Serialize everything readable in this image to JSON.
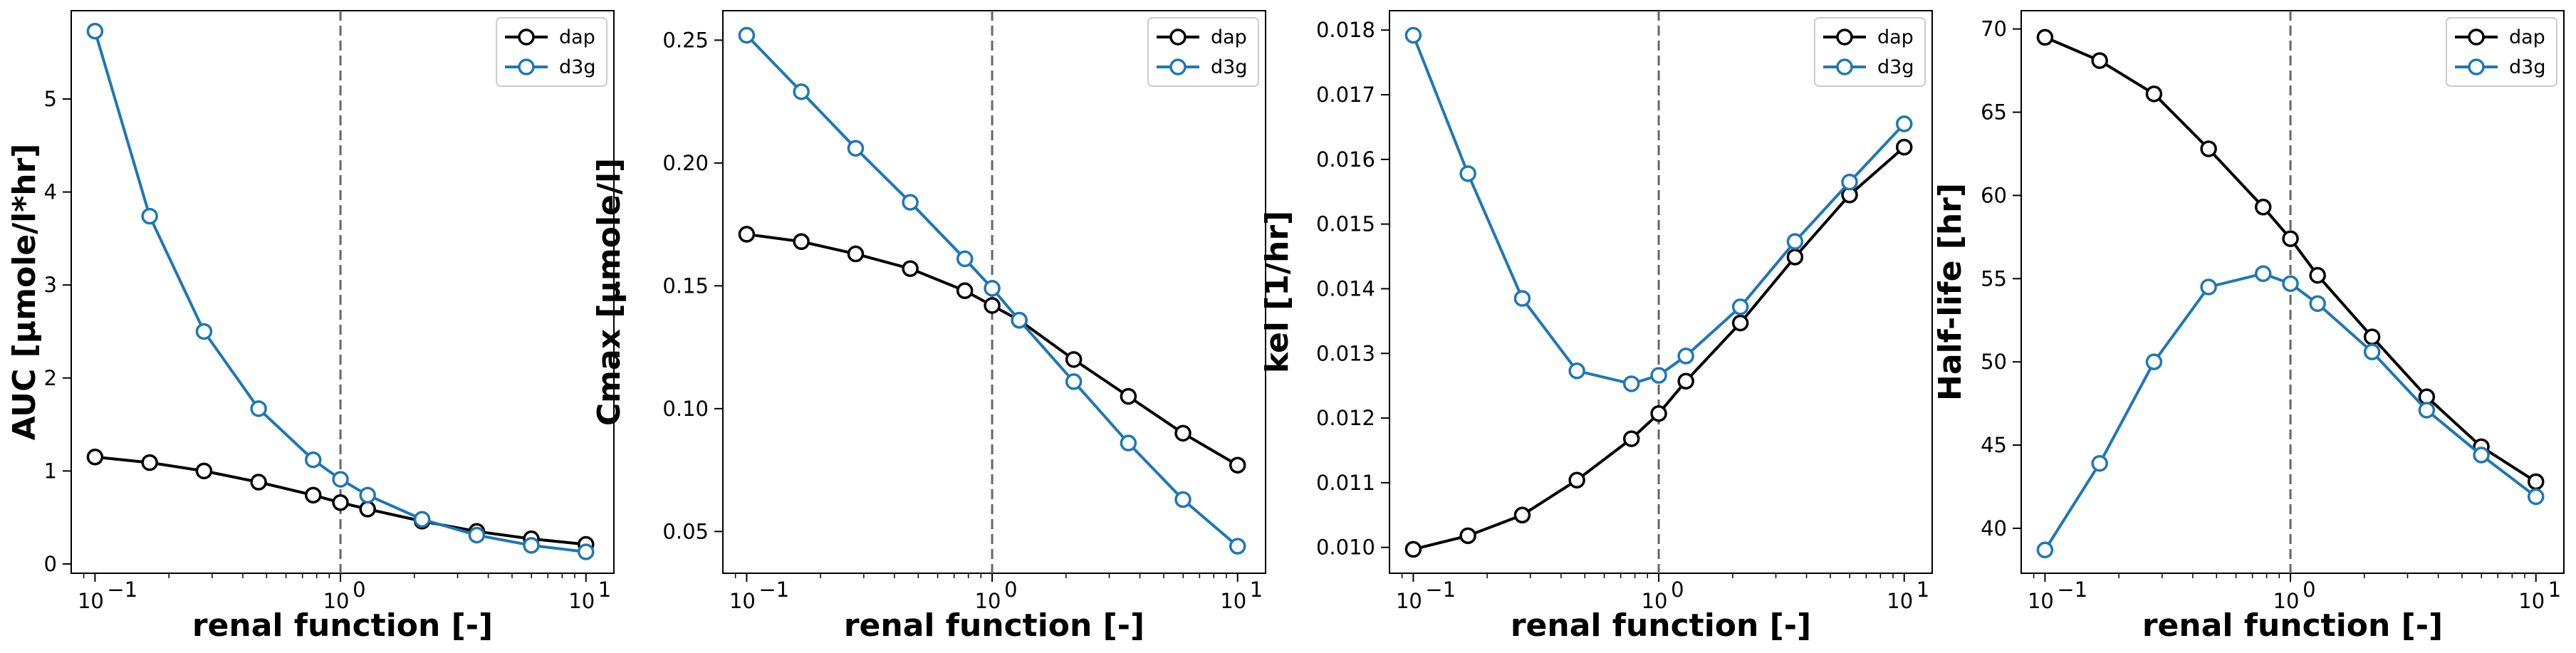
{
  "colors": {
    "dap": "#000000",
    "d3g": "#1f77b4",
    "vline": "#666666"
  },
  "chart_data": [
    {
      "type": "line",
      "xscale": "log",
      "xlabel": "renal function [-]",
      "ylabel": "AUC [µmole/l*hr]",
      "xlim": [
        0.08,
        13
      ],
      "ylim": [
        -0.1,
        5.95
      ],
      "yticks": [
        0,
        1,
        2,
        3,
        4,
        5
      ],
      "ytick_labels": [
        "0",
        "1",
        "2",
        "3",
        "4",
        "5"
      ],
      "xticks": [
        0.1,
        1,
        10
      ],
      "xtick_labels": [
        "10",
        "10",
        "10"
      ],
      "xtick_exponents": [
        "−1",
        "0",
        "1"
      ],
      "vline": 1,
      "legend": "top-right",
      "x": [
        0.1,
        0.167,
        0.278,
        0.464,
        0.774,
        1.0,
        1.29,
        2.15,
        3.59,
        5.99,
        10.0
      ],
      "series": [
        {
          "name": "dap",
          "values": [
            1.15,
            1.09,
            1.0,
            0.88,
            0.74,
            0.66,
            0.59,
            0.46,
            0.35,
            0.27,
            0.21
          ]
        },
        {
          "name": "d3g",
          "values": [
            5.73,
            3.74,
            2.5,
            1.67,
            1.12,
            0.91,
            0.74,
            0.48,
            0.31,
            0.2,
            0.13
          ]
        }
      ]
    },
    {
      "type": "line",
      "xscale": "log",
      "xlabel": "renal function [-]",
      "ylabel": "Cmax [µmole/l]",
      "xlim": [
        0.08,
        13
      ],
      "ylim": [
        0.033,
        0.262
      ],
      "yticks": [
        0.05,
        0.1,
        0.15,
        0.2,
        0.25
      ],
      "ytick_labels": [
        "0.05",
        "0.10",
        "0.15",
        "0.20",
        "0.25"
      ],
      "xticks": [
        0.1,
        1,
        10
      ],
      "xtick_labels": [
        "10",
        "10",
        "10"
      ],
      "xtick_exponents": [
        "−1",
        "0",
        "1"
      ],
      "vline": 1,
      "legend": "top-right",
      "x": [
        0.1,
        0.167,
        0.278,
        0.464,
        0.774,
        1.0,
        1.29,
        2.15,
        3.59,
        5.99,
        10.0
      ],
      "series": [
        {
          "name": "dap",
          "values": [
            0.171,
            0.168,
            0.163,
            0.157,
            0.148,
            0.142,
            0.136,
            0.12,
            0.105,
            0.09,
            0.077
          ]
        },
        {
          "name": "d3g",
          "values": [
            0.252,
            0.229,
            0.206,
            0.184,
            0.161,
            0.149,
            0.136,
            0.111,
            0.086,
            0.063,
            0.044
          ]
        }
      ]
    },
    {
      "type": "line",
      "xscale": "log",
      "xlabel": "renal function [-]",
      "ylabel": "kel [1/hr]",
      "xlim": [
        0.08,
        13
      ],
      "ylim": [
        0.0096,
        0.0183
      ],
      "yticks": [
        0.01,
        0.011,
        0.012,
        0.013,
        0.014,
        0.015,
        0.016,
        0.017,
        0.018
      ],
      "ytick_labels": [
        "0.010",
        "0.011",
        "0.012",
        "0.013",
        "0.014",
        "0.015",
        "0.016",
        "0.017",
        "0.018"
      ],
      "xticks": [
        0.1,
        1,
        10
      ],
      "xtick_labels": [
        "10",
        "10",
        "10"
      ],
      "xtick_exponents": [
        "−1",
        "0",
        "1"
      ],
      "vline": 1,
      "legend": "top-right",
      "x": [
        0.1,
        0.167,
        0.278,
        0.464,
        0.774,
        1.0,
        1.29,
        2.15,
        3.59,
        5.99,
        10.0
      ],
      "series": [
        {
          "name": "dap",
          "values": [
            0.00997,
            0.01018,
            0.0105,
            0.01104,
            0.01168,
            0.01207,
            0.01257,
            0.01347,
            0.01449,
            0.01545,
            0.01619
          ]
        },
        {
          "name": "d3g",
          "values": [
            0.01792,
            0.01578,
            0.01385,
            0.01273,
            0.01253,
            0.01266,
            0.01296,
            0.01372,
            0.01473,
            0.01565,
            0.01655
          ]
        }
      ]
    },
    {
      "type": "line",
      "xscale": "log",
      "xlabel": "renal function [-]",
      "ylabel": "Half-life [hr]",
      "xlim": [
        0.08,
        13
      ],
      "ylim": [
        37.3,
        71.1
      ],
      "yticks": [
        40,
        45,
        50,
        55,
        60,
        65,
        70
      ],
      "ytick_labels": [
        "40",
        "45",
        "50",
        "55",
        "60",
        "65",
        "70"
      ],
      "xticks": [
        0.1,
        1,
        10
      ],
      "xtick_labels": [
        "10",
        "10",
        "10"
      ],
      "xtick_exponents": [
        "−1",
        "0",
        "1"
      ],
      "vline": 1,
      "legend": "top-right",
      "x": [
        0.1,
        0.167,
        0.278,
        0.464,
        0.774,
        1.0,
        1.29,
        2.15,
        3.59,
        5.99,
        10.0
      ],
      "series": [
        {
          "name": "dap",
          "values": [
            69.5,
            68.1,
            66.1,
            62.8,
            59.3,
            57.4,
            55.2,
            51.5,
            47.9,
            44.9,
            42.8
          ]
        },
        {
          "name": "d3g",
          "values": [
            38.7,
            43.9,
            50.0,
            54.5,
            55.3,
            54.7,
            53.5,
            50.6,
            47.1,
            44.4,
            41.9
          ]
        }
      ]
    }
  ]
}
